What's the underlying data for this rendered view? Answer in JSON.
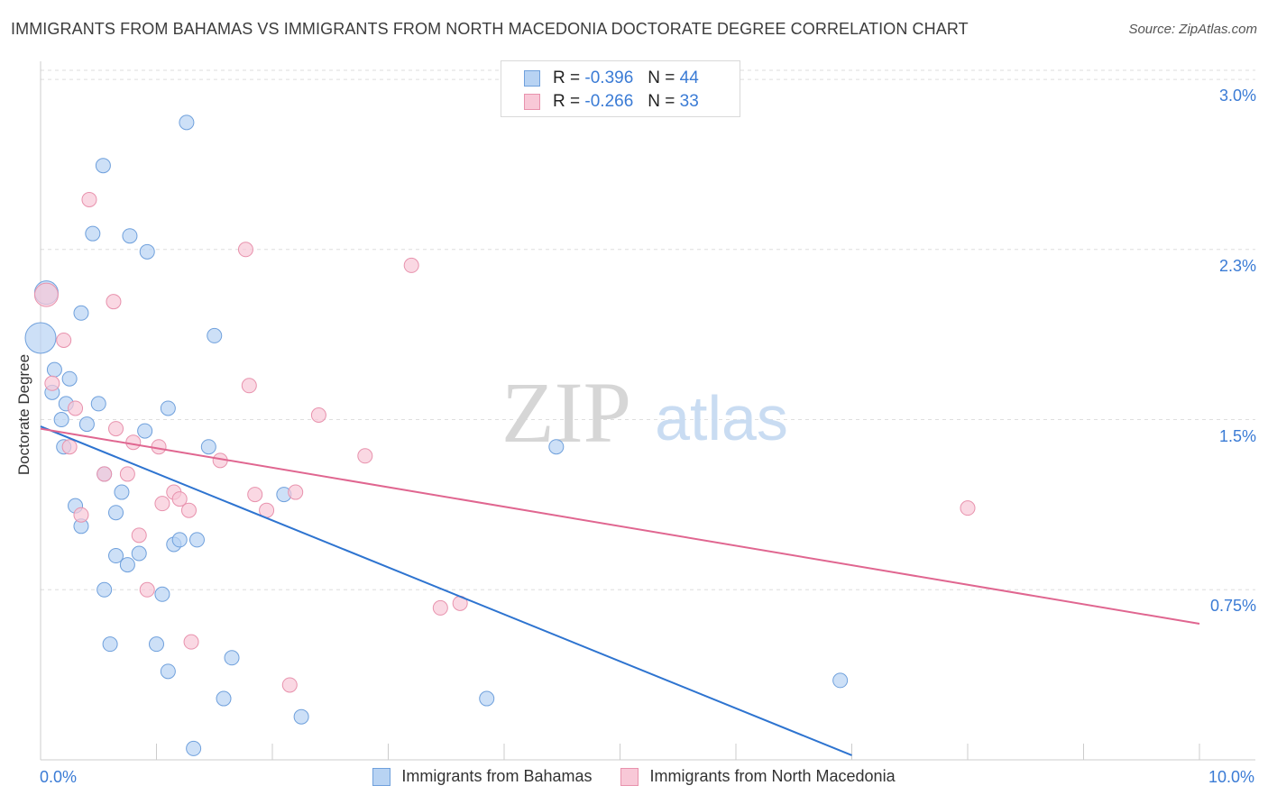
{
  "title": "IMMIGRANTS FROM BAHAMAS VS IMMIGRANTS FROM NORTH MACEDONIA DOCTORATE DEGREE CORRELATION CHART",
  "source": "Source: ZipAtlas.com",
  "watermark": {
    "zip": "ZIP",
    "atlas": "atlas"
  },
  "legend": {
    "r_label": "R =",
    "n_label": "N =",
    "rows": [
      {
        "r": "-0.396",
        "n": "44"
      },
      {
        "r": "-0.266",
        "n": "33"
      }
    ]
  },
  "colors": {
    "bahamas_fill": "#b8d3f3",
    "bahamas_stroke": "#6fa0dc",
    "bahamas_line": "#2e74d0",
    "macedonia_fill": "#f8c8d7",
    "macedonia_stroke": "#e892ad",
    "macedonia_line": "#e06690",
    "tick_text": "#3a7bd5",
    "grid": "#dedede"
  },
  "chart_data": {
    "type": "scatter",
    "xlabel": "",
    "ylabel": "Doctorate Degree",
    "x_tick_labels": [
      "0.0%",
      "10.0%"
    ],
    "y_tick_labels": [
      "0.75%",
      "1.5%",
      "2.3%",
      "3.0%"
    ],
    "y_ticks": [
      0.75,
      1.5,
      2.25,
      3.0
    ],
    "xlim": [
      0,
      10
    ],
    "ylim": [
      0,
      3.04
    ],
    "grid": "horizontal dashed",
    "legend_position": "top-center",
    "series": [
      {
        "name": "Immigrants from Bahamas",
        "points": [
          [
            0.05,
            2.06
          ],
          [
            0.0,
            1.86
          ],
          [
            0.35,
            1.97
          ],
          [
            0.25,
            1.68
          ],
          [
            0.12,
            1.72
          ],
          [
            0.1,
            1.62
          ],
          [
            0.22,
            1.57
          ],
          [
            0.18,
            1.5
          ],
          [
            0.4,
            1.48
          ],
          [
            0.2,
            1.38
          ],
          [
            0.5,
            1.57
          ],
          [
            0.9,
            1.45
          ],
          [
            1.1,
            1.55
          ],
          [
            1.5,
            1.87
          ],
          [
            1.45,
            1.38
          ],
          [
            0.55,
            1.26
          ],
          [
            0.3,
            1.12
          ],
          [
            0.7,
            1.18
          ],
          [
            0.35,
            1.03
          ],
          [
            0.65,
            1.09
          ],
          [
            0.65,
            0.9
          ],
          [
            0.85,
            0.91
          ],
          [
            0.75,
            0.86
          ],
          [
            1.15,
            0.95
          ],
          [
            1.2,
            0.97
          ],
          [
            1.35,
            0.97
          ],
          [
            0.55,
            0.75
          ],
          [
            1.05,
            0.73
          ],
          [
            0.6,
            0.51
          ],
          [
            1.0,
            0.51
          ],
          [
            1.1,
            0.39
          ],
          [
            1.65,
            0.45
          ],
          [
            1.58,
            0.27
          ],
          [
            2.25,
            0.19
          ],
          [
            1.32,
            0.05
          ],
          [
            2.1,
            1.17
          ],
          [
            0.54,
            2.62
          ],
          [
            1.26,
            2.81
          ],
          [
            0.45,
            2.32
          ],
          [
            0.77,
            2.31
          ],
          [
            0.92,
            2.24
          ],
          [
            3.85,
            0.27
          ],
          [
            4.45,
            1.38
          ],
          [
            6.9,
            0.35
          ]
        ]
      },
      {
        "name": "Immigrants from North Macedonia",
        "points": [
          [
            0.05,
            2.05
          ],
          [
            0.2,
            1.85
          ],
          [
            0.1,
            1.66
          ],
          [
            0.3,
            1.55
          ],
          [
            0.25,
            1.38
          ],
          [
            0.65,
            1.46
          ],
          [
            0.8,
            1.4
          ],
          [
            1.02,
            1.38
          ],
          [
            0.55,
            1.26
          ],
          [
            0.75,
            1.26
          ],
          [
            1.55,
            1.32
          ],
          [
            1.8,
            1.65
          ],
          [
            0.42,
            2.47
          ],
          [
            0.63,
            2.02
          ],
          [
            1.77,
            2.25
          ],
          [
            3.2,
            2.18
          ],
          [
            2.4,
            1.52
          ],
          [
            2.8,
            1.34
          ],
          [
            1.15,
            1.18
          ],
          [
            1.2,
            1.15
          ],
          [
            1.05,
            1.13
          ],
          [
            1.28,
            1.1
          ],
          [
            1.85,
            1.17
          ],
          [
            1.95,
            1.1
          ],
          [
            2.2,
            1.18
          ],
          [
            0.35,
            1.08
          ],
          [
            0.85,
            0.99
          ],
          [
            0.92,
            0.75
          ],
          [
            1.3,
            0.52
          ],
          [
            2.15,
            0.33
          ],
          [
            3.45,
            0.67
          ],
          [
            3.62,
            0.69
          ],
          [
            8.0,
            1.11
          ]
        ]
      }
    ],
    "trendlines": [
      {
        "series": "Immigrants from Bahamas",
        "x": [
          0.0,
          7.0
        ],
        "y": [
          1.47,
          0.02
        ]
      },
      {
        "series": "Immigrants from North Macedonia",
        "x": [
          0.0,
          10.0
        ],
        "y": [
          1.46,
          0.6
        ]
      }
    ]
  }
}
